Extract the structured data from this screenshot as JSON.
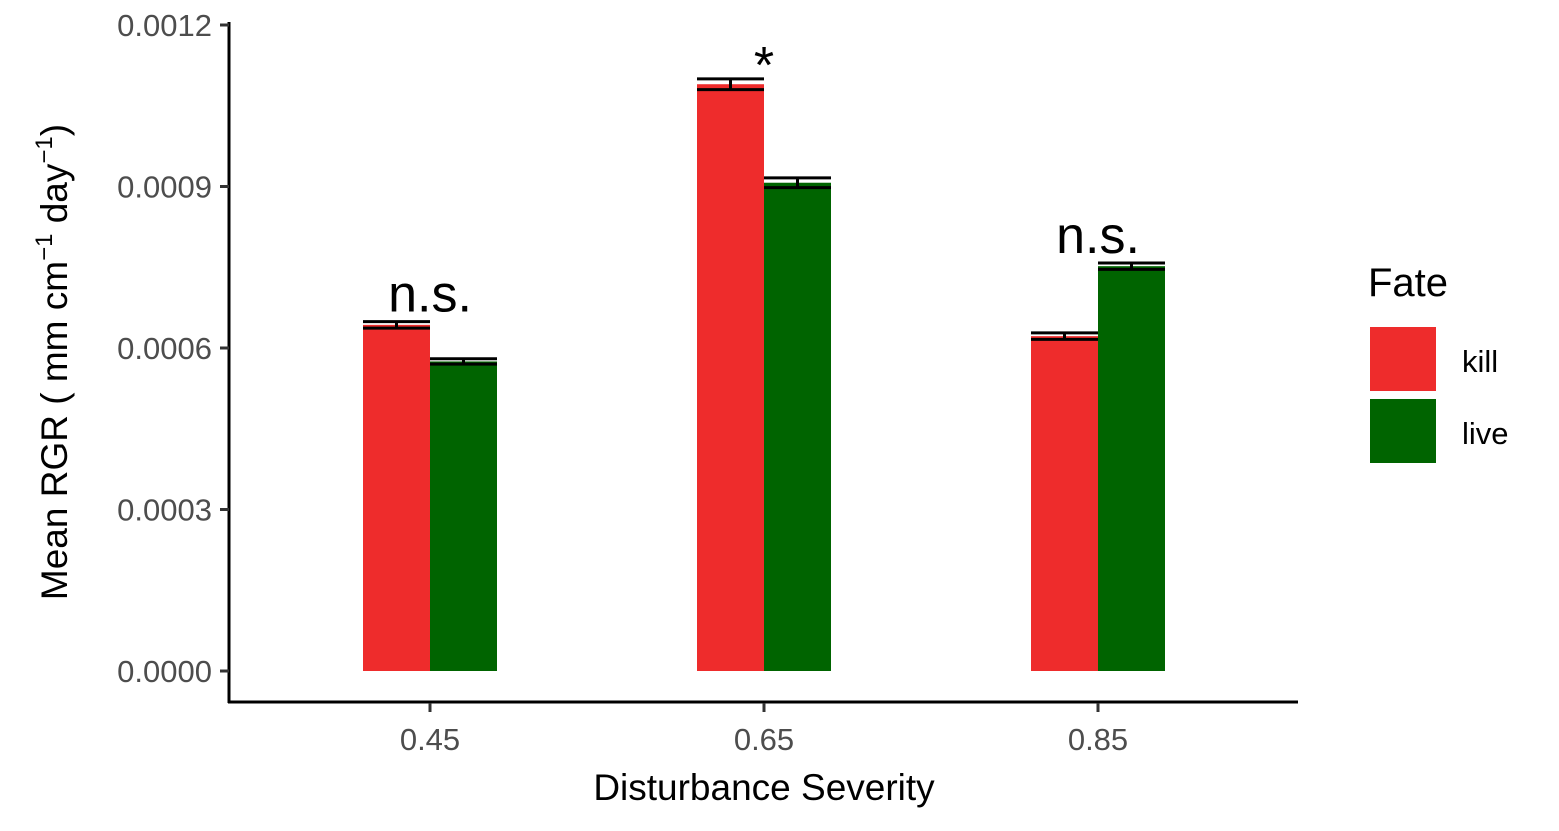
{
  "chart_data": {
    "type": "bar",
    "categories": [
      "0.45",
      "0.65",
      "0.85"
    ],
    "series": [
      {
        "name": "kill",
        "color": "#ee2c2c",
        "values": [
          0.000643,
          0.00109,
          0.000622
        ],
        "errors": [
          6e-06,
          1e-05,
          6e-06
        ]
      },
      {
        "name": "live",
        "color": "#006400",
        "values": [
          0.000575,
          0.000907,
          0.000752
        ],
        "errors": [
          5e-06,
          9e-06,
          6e-06
        ]
      }
    ],
    "xlabel": "Disturbance Severity",
    "ylabel": "Mean RGR ( mm cm⁻¹ day⁻¹)",
    "ylabel_parts": {
      "prefix": "Mean RGR ( mm cm",
      "sup1": "−1",
      "mid": " day",
      "sup2": "−1",
      "suffix": ")"
    },
    "ylim": [
      0,
      0.0012
    ],
    "yticks": [
      "0.0000",
      "0.0003",
      "0.0006",
      "0.0009",
      "0.0012"
    ],
    "ytick_values": [
      0,
      0.0003,
      0.0006,
      0.0009,
      0.0012
    ],
    "annotations": [
      "n.s.",
      "*",
      "n.s."
    ],
    "legend": {
      "title": "Fate",
      "placement": "right"
    },
    "grid": false
  }
}
